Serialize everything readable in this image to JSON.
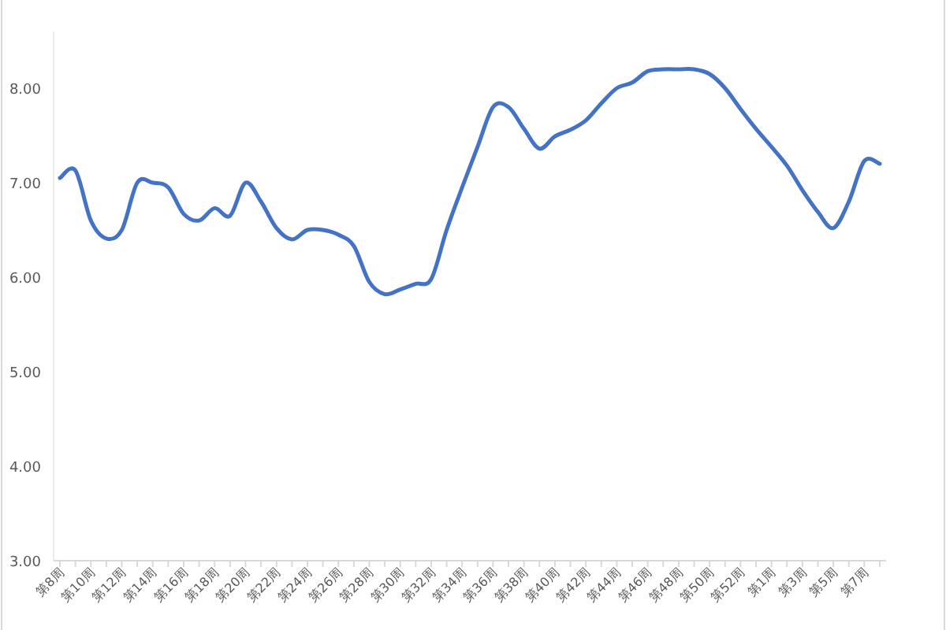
{
  "chart_data": {
    "type": "line",
    "categories": [
      "第8周",
      null,
      "第10周",
      null,
      "第12周",
      null,
      "第14周",
      null,
      "第16周",
      null,
      "第18周",
      null,
      "第20周",
      null,
      "第22周",
      null,
      "第24周",
      null,
      "第26周",
      null,
      "第28周",
      null,
      "第30周",
      null,
      "第32周",
      null,
      "第34周",
      null,
      "第36周",
      null,
      "第38周",
      null,
      "第40周",
      null,
      "第42周",
      null,
      "第44周",
      null,
      "第46周",
      null,
      "第48周",
      null,
      "第50周",
      null,
      "第52周",
      null,
      "第1周",
      null,
      "第3周",
      null,
      "第5周",
      null,
      "第7周",
      null
    ],
    "values": [
      7.05,
      7.13,
      6.6,
      6.41,
      6.5,
      7.0,
      7.0,
      6.95,
      6.67,
      6.6,
      6.73,
      6.65,
      7.0,
      6.8,
      6.52,
      6.4,
      6.5,
      6.5,
      6.45,
      6.33,
      5.95,
      5.82,
      5.87,
      5.93,
      5.98,
      6.5,
      6.95,
      7.38,
      7.8,
      7.8,
      7.57,
      7.36,
      7.49,
      7.56,
      7.66,
      7.84,
      8.0,
      8.06,
      8.18,
      8.2,
      8.2,
      8.2,
      8.15,
      8.0,
      7.78,
      7.57,
      7.38,
      7.18,
      6.92,
      6.69,
      6.52,
      6.8,
      7.23,
      7.2
    ],
    "color": "#4472c4",
    "ylim": [
      3,
      8.6
    ],
    "yticks": [
      {
        "value": 3,
        "label": "3.00"
      },
      {
        "value": 4,
        "label": "4.00"
      },
      {
        "value": 5,
        "label": "5.00"
      },
      {
        "value": 6,
        "label": "6.00"
      },
      {
        "value": 7,
        "label": "7.00"
      },
      {
        "value": 8,
        "label": "8.00"
      }
    ],
    "line_style": "solid",
    "marker": "none"
  }
}
